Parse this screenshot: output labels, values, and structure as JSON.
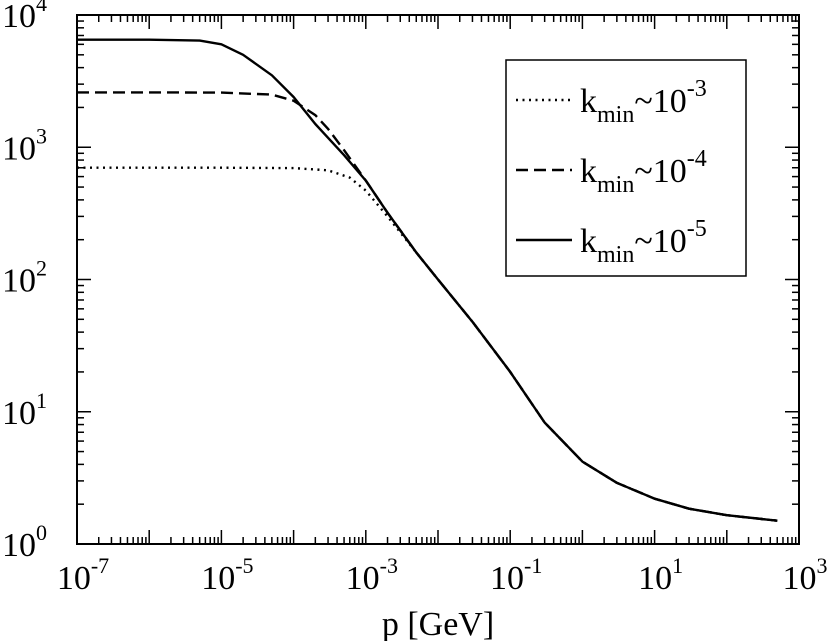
{
  "chart_data": {
    "type": "line",
    "title": "",
    "xlabel": "p [GeV]",
    "ylabel": "",
    "xscale": "log",
    "yscale": "log",
    "xlim": [
      1e-07,
      1000
    ],
    "ylim": [
      1,
      10000
    ],
    "grid": false,
    "legend_position": "top-right",
    "x_ticks": [
      {
        "base": "10",
        "exp": "-7"
      },
      {
        "base": "10",
        "exp": "-5"
      },
      {
        "base": "10",
        "exp": "-3"
      },
      {
        "base": "10",
        "exp": "-1"
      },
      {
        "base": "10",
        "exp": "1"
      },
      {
        "base": "10",
        "exp": "3"
      }
    ],
    "y_ticks": [
      {
        "base": "10",
        "exp": "0"
      },
      {
        "base": "10",
        "exp": "1"
      },
      {
        "base": "10",
        "exp": "2"
      },
      {
        "base": "10",
        "exp": "3"
      },
      {
        "base": "10",
        "exp": "4"
      }
    ],
    "series": [
      {
        "legend": {
          "k": "k",
          "sub": "min",
          "rest": "~10",
          "sup": "-3"
        },
        "style": "dotted",
        "color": "#000000",
        "x": [
          1e-07,
          1e-06,
          1e-05,
          0.0001,
          0.0003,
          0.0006,
          0.001,
          0.002,
          0.005,
          0.01,
          0.03,
          0.1,
          0.3,
          1,
          3,
          10,
          30,
          100,
          500
        ],
        "y": [
          700,
          700,
          700,
          695,
          670,
          590,
          470,
          300,
          160,
          100,
          48,
          20,
          8.3,
          4.2,
          2.9,
          2.2,
          1.85,
          1.65,
          1.5
        ]
      },
      {
        "legend": {
          "k": "k",
          "sub": "min",
          "rest": "~10",
          "sup": "-4"
        },
        "style": "dashed",
        "color": "#000000",
        "x": [
          1e-07,
          1e-06,
          1e-05,
          5e-05,
          0.0001,
          0.0002,
          0.0003,
          0.0005,
          0.001,
          0.002,
          0.005,
          0.01,
          0.03,
          0.1,
          0.3,
          1,
          3,
          10,
          30,
          100,
          500
        ],
        "y": [
          2600,
          2600,
          2590,
          2500,
          2250,
          1750,
          1380,
          950,
          560,
          320,
          160,
          100,
          48,
          20,
          8.3,
          4.2,
          2.9,
          2.2,
          1.85,
          1.65,
          1.5
        ]
      },
      {
        "legend": {
          "k": "k",
          "sub": "min",
          "rest": "~10",
          "sup": "-5"
        },
        "style": "solid",
        "color": "#000000",
        "x": [
          1e-07,
          1e-06,
          5e-06,
          1e-05,
          2e-05,
          5e-05,
          0.0001,
          0.0002,
          0.0005,
          0.001,
          0.002,
          0.005,
          0.01,
          0.03,
          0.1,
          0.3,
          1,
          3,
          10,
          30,
          100,
          500
        ],
        "y": [
          6500,
          6500,
          6400,
          6000,
          5000,
          3500,
          2400,
          1500,
          870,
          560,
          320,
          160,
          100,
          48,
          20,
          8.3,
          4.2,
          2.9,
          2.2,
          1.85,
          1.65,
          1.5
        ]
      }
    ]
  }
}
